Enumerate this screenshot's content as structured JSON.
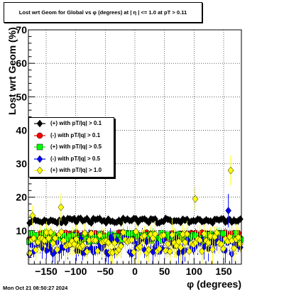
{
  "chart_data": {
    "type": "scatter",
    "title": "Lost wrt Geom for Global vs φ (degrees) at |  η | <= 1.0 at pT > 0.11",
    "xlabel": "φ (degrees)",
    "ylabel": "Lost wrt Geom (%)",
    "xlim": [
      -180,
      180
    ],
    "ylim": [
      0,
      70
    ],
    "xticks": [
      -150,
      -100,
      -50,
      0,
      50,
      100,
      150
    ],
    "yticks": [
      10,
      20,
      30,
      40,
      50,
      60,
      70
    ],
    "grid": true,
    "legend_position": "left-middle",
    "n_bins": 100,
    "series": [
      {
        "name": "(+) with pT/|q| > 0.1",
        "color": "#000000",
        "marker": "diamond",
        "level": 13.0,
        "spread": 0.7,
        "err": 0.8,
        "seed": 11,
        "spikes": []
      },
      {
        "name": "(-) with pT/|q| > 0.1",
        "color": "#ff0000",
        "marker": "circle",
        "level": 8.5,
        "spread": 1.0,
        "err": 0.9,
        "seed": 23,
        "spikes": []
      },
      {
        "name": "(+) with pT/|q| > 0.5",
        "color": "#00ff00",
        "marker": "square",
        "level": 8.0,
        "spread": 1.3,
        "err": 1.3,
        "seed": 37,
        "spikes": []
      },
      {
        "name": "(-) with pT/|q| > 0.5",
        "color": "#0000ff",
        "marker": "diamond",
        "level": 5.5,
        "spread": 2.6,
        "err": 2.6,
        "seed": 51,
        "spikes": [
          {
            "x": 158,
            "y": 16.0,
            "err": 5.0
          }
        ]
      },
      {
        "name": "(+) with pT/|q| > 1.0",
        "color": "#ffff00",
        "marker": "diamond",
        "level": 6.5,
        "spread": 3.2,
        "err": 3.2,
        "seed": 67,
        "spikes": [
          {
            "x": 162,
            "y": 28.0,
            "err": 4.5
          },
          {
            "x": 102,
            "y": 19.5,
            "err": 3.5
          },
          {
            "x": -173,
            "y": 14.5,
            "err": 3.0
          },
          {
            "x": -125,
            "y": 17.0,
            "err": 4.0
          }
        ]
      }
    ]
  },
  "timestamp": "Mon Oct 21 08:50:27 2024"
}
